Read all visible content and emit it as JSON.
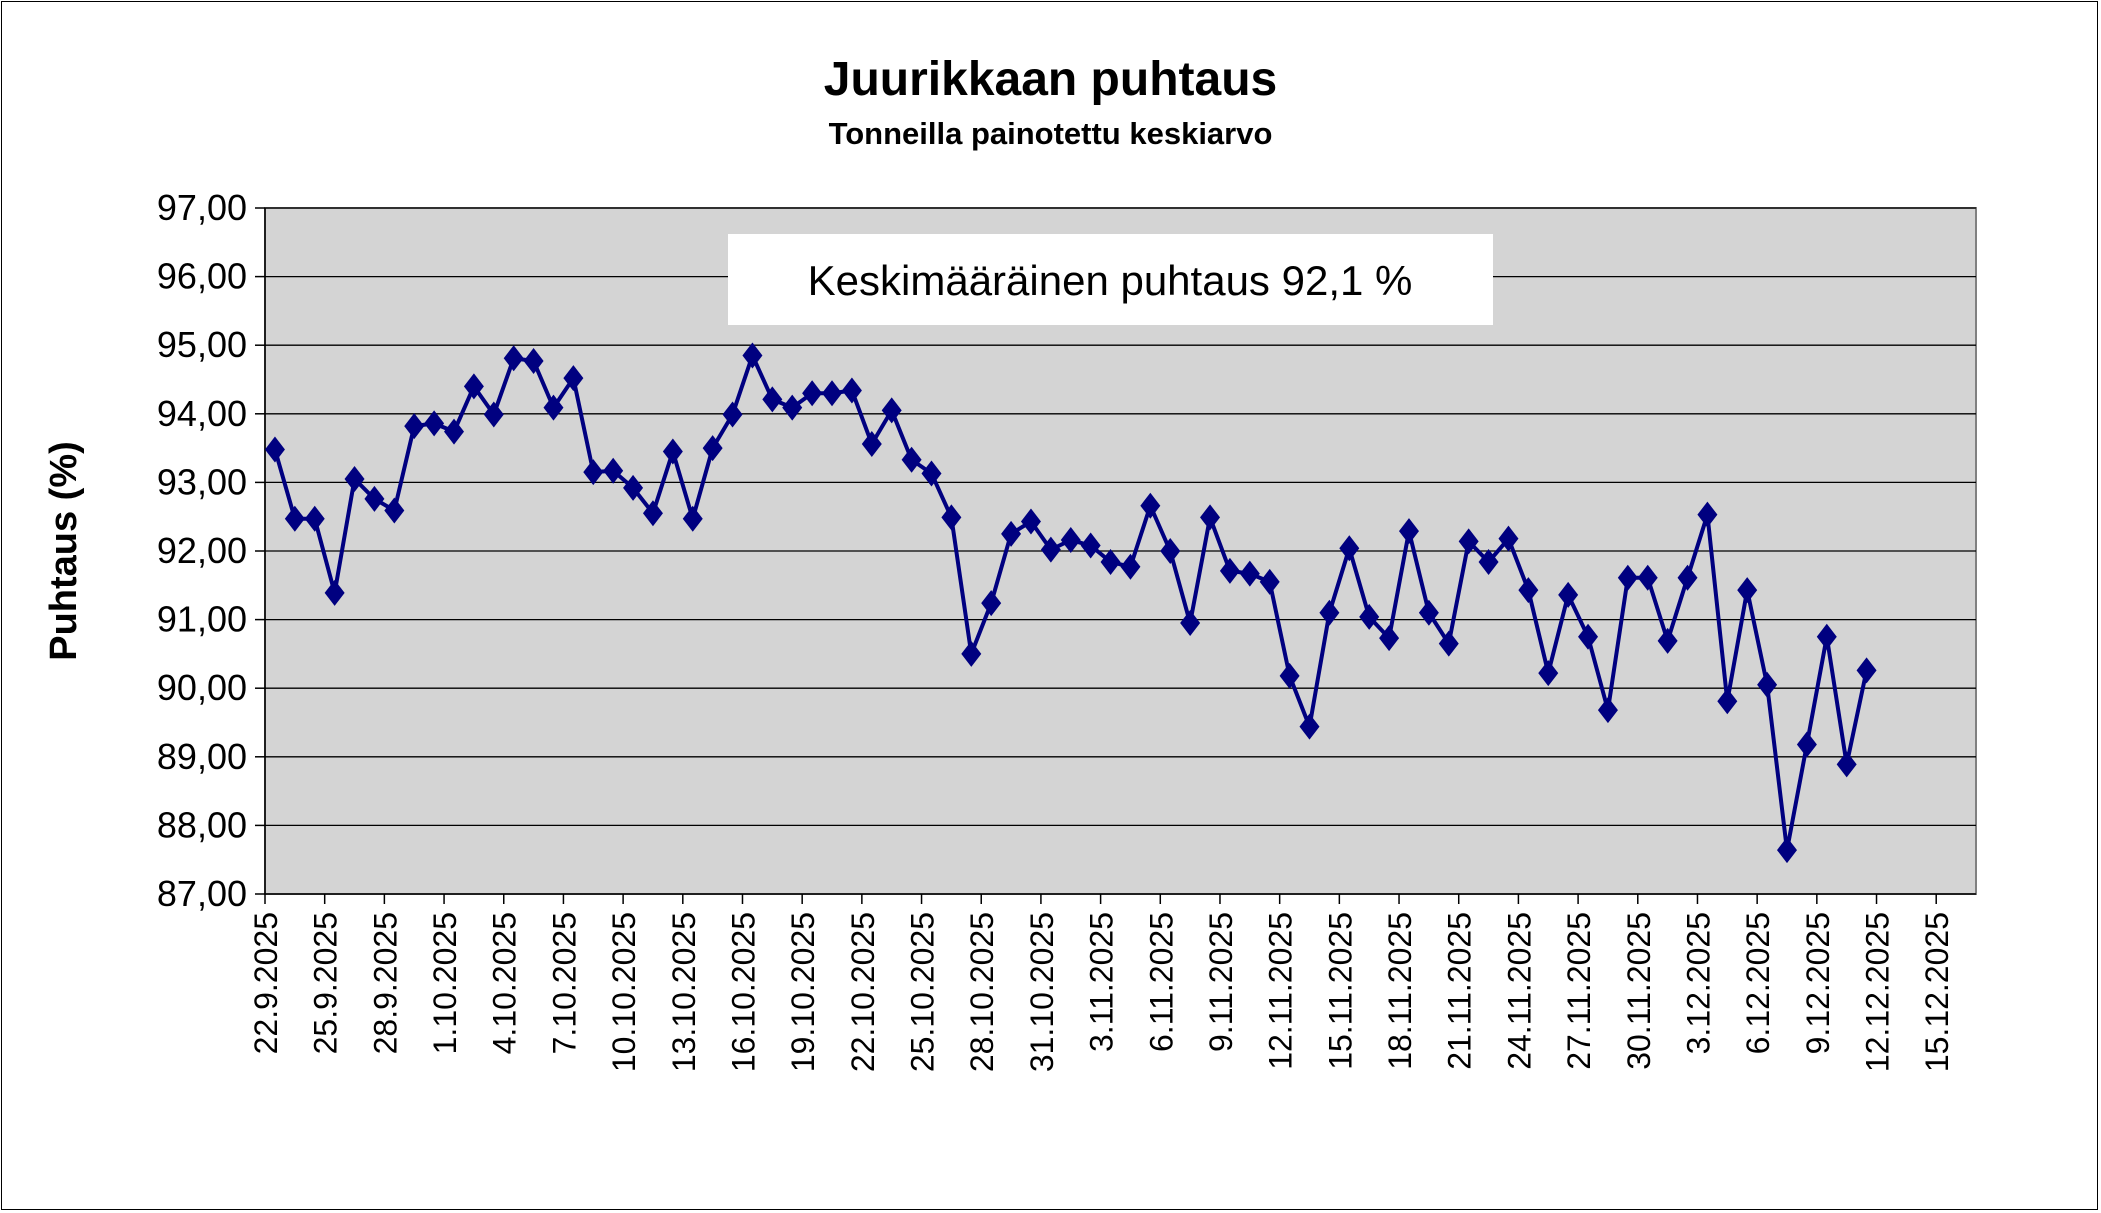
{
  "chart_data": {
    "type": "line",
    "title": "Juurikkaan puhtaus",
    "subtitle": "Tonneilla painotettu keskiarvo",
    "xlabel": "",
    "ylabel": "Puhtaus (%)",
    "ylim": [
      87,
      97
    ],
    "yticks": [
      "87,00",
      "88,00",
      "89,00",
      "90,00",
      "91,00",
      "92,00",
      "93,00",
      "94,00",
      "95,00",
      "96,00",
      "97,00"
    ],
    "xticks": [
      "22.9.2025",
      "25.9.2025",
      "28.9.2025",
      "1.10.2025",
      "4.10.2025",
      "7.10.2025",
      "10.10.2025",
      "13.10.2025",
      "16.10.2025",
      "19.10.2025",
      "22.10.2025",
      "25.10.2025",
      "28.10.2025",
      "31.10.2025",
      "3.11.2025",
      "6.11.2025",
      "9.11.2025",
      "12.11.2025",
      "15.11.2025",
      "18.11.2025",
      "21.11.2025",
      "24.11.2025",
      "27.11.2025",
      "30.11.2025",
      "3.12.2025",
      "6.12.2025",
      "9.12.2025",
      "12.12.2025",
      "15.12.2025"
    ],
    "x_start": "22.9.2025",
    "x_step": "1 day",
    "grid": true,
    "plot_background": "#d4d4d4",
    "series_color": "#000080",
    "marker": "diamond",
    "annotation": "Keskimääräinen puhtaus 92,1 %",
    "values": [
      93.48,
      92.47,
      92.47,
      91.39,
      93.05,
      92.76,
      92.59,
      93.82,
      93.86,
      93.74,
      94.4,
      93.99,
      94.81,
      94.77,
      94.09,
      94.52,
      93.15,
      93.17,
      92.92,
      92.55,
      93.45,
      92.47,
      93.5,
      93.99,
      94.85,
      94.21,
      94.09,
      94.3,
      94.3,
      94.34,
      93.56,
      94.05,
      93.33,
      93.13,
      92.49,
      90.5,
      91.24,
      92.25,
      92.43,
      92.02,
      92.16,
      92.08,
      91.84,
      91.77,
      92.66,
      92.0,
      90.95,
      92.49,
      91.71,
      91.67,
      91.55,
      90.18,
      89.44,
      91.1,
      92.04,
      91.04,
      90.73,
      92.29,
      91.1,
      90.65,
      92.14,
      91.84,
      92.18,
      91.43,
      90.22,
      91.36,
      90.75,
      89.68,
      91.61,
      91.61,
      90.69,
      91.61,
      92.53,
      89.81,
      91.43,
      90.05,
      87.64,
      89.18,
      90.75,
      88.89,
      90.26
    ]
  }
}
